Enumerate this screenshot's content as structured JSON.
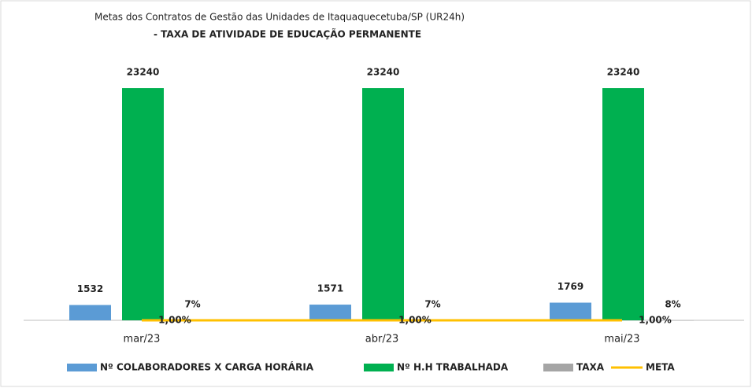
{
  "chart_data": {
    "type": "bar",
    "title": "Metas dos Contratos de Gestão das Unidades de Itaquaquecetuba/SP (UR24h)",
    "subtitle": "- TAXA DE ATIVIDADE DE EDUCAÇÃO PERMANENTE",
    "categories": [
      "mar/23",
      "abr/23",
      "mai/23"
    ],
    "series": [
      {
        "name": "Nº COLABORADORES X CARGA HORÁRIA",
        "color": "#5b9bd5",
        "values": [
          1532,
          1571,
          1769
        ]
      },
      {
        "name": "Nº H.H TRABALHADA",
        "color": "#00b050",
        "values": [
          23240,
          23240,
          23240
        ]
      },
      {
        "name": "TAXA",
        "color": "#a5a5a5",
        "values": [
          7,
          7,
          8
        ],
        "value_labels": [
          "7%",
          "7%",
          "8%"
        ]
      },
      {
        "name": "META",
        "color": "#ffc000",
        "type": "line",
        "values": [
          1,
          1,
          1
        ],
        "value_labels": [
          "1,00%",
          "1,00%",
          "1,00%"
        ]
      }
    ]
  }
}
